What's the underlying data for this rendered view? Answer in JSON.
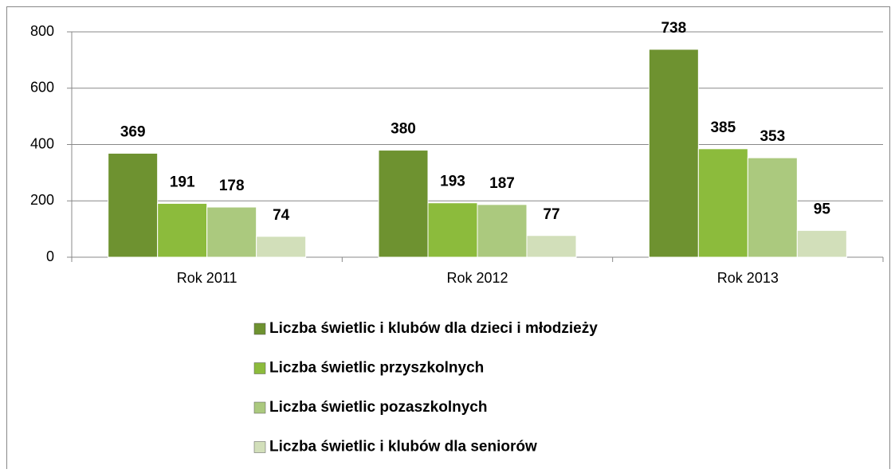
{
  "chart_data": {
    "type": "bar",
    "categories": [
      "Rok 2011",
      "Rok 2012",
      "Rok 2013"
    ],
    "series": [
      {
        "name": "Liczba świetlic i klubów dla dzieci i młodzieży",
        "color": "#6e9230",
        "values": [
          369,
          380,
          738
        ]
      },
      {
        "name": "Liczba świetlic przyszkolnych",
        "color": "#8cbb3c",
        "values": [
          191,
          193,
          385
        ]
      },
      {
        "name": "Liczba świetlic pozaszkolnych",
        "color": "#abc97e",
        "values": [
          178,
          187,
          353
        ]
      },
      {
        "name": "Liczba świetlic i klubów dla seniorów",
        "color": "#d2dfba",
        "values": [
          74,
          77,
          95
        ]
      }
    ],
    "ylim": [
      0,
      800
    ],
    "yticks": [
      0,
      200,
      400,
      600,
      800
    ],
    "grid": true,
    "legend": "bottom"
  }
}
